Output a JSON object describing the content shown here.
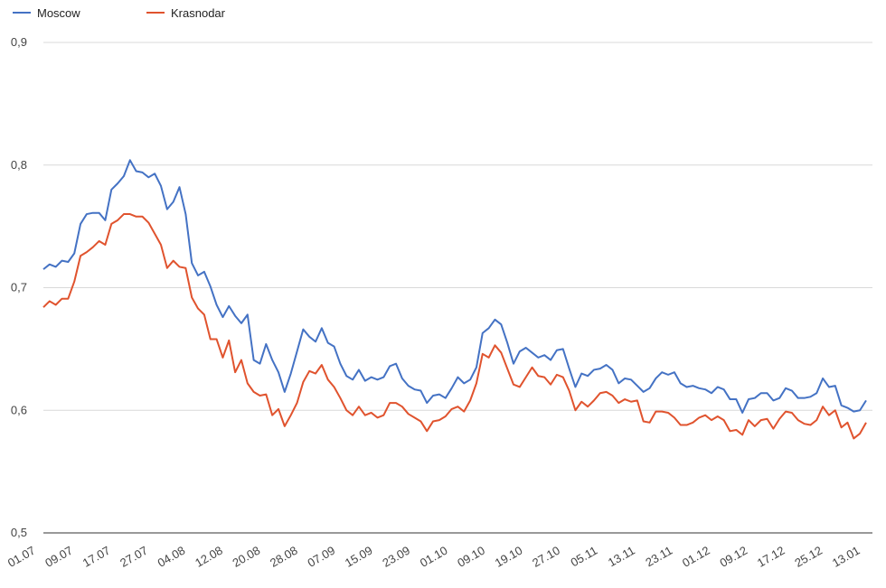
{
  "chart_data": {
    "type": "line",
    "title": "",
    "xlabel": "",
    "ylabel": "",
    "ylim": [
      0.5,
      0.9
    ],
    "y_ticks": [
      "0,5",
      "0,6",
      "0,7",
      "0,8",
      "0,9"
    ],
    "y_tick_values": [
      0.5,
      0.6,
      0.7,
      0.8,
      0.9
    ],
    "x_ticks": [
      "01.07",
      "09.07",
      "17.07",
      "27.07",
      "04.08",
      "12.08",
      "20.08",
      "28.08",
      "07.09",
      "15.09",
      "23.09",
      "01.10",
      "09.10",
      "19.10",
      "27.10",
      "05.11",
      "13.11",
      "23.11",
      "01.12",
      "09.12",
      "17.12",
      "25.12",
      "13.01"
    ],
    "grid": true,
    "legend_position": "top-left",
    "series": [
      {
        "name": "Moscow",
        "color": "#4472c4",
        "values": [
          0.715,
          0.719,
          0.717,
          0.722,
          0.721,
          0.728,
          0.752,
          0.76,
          0.761,
          0.761,
          0.755,
          0.78,
          0.785,
          0.791,
          0.804,
          0.795,
          0.794,
          0.79,
          0.793,
          0.783,
          0.764,
          0.77,
          0.782,
          0.76,
          0.72,
          0.71,
          0.713,
          0.701,
          0.686,
          0.676,
          0.685,
          0.677,
          0.671,
          0.678,
          0.641,
          0.638,
          0.654,
          0.641,
          0.631,
          0.615,
          0.63,
          0.648,
          0.666,
          0.66,
          0.656,
          0.667,
          0.655,
          0.652,
          0.638,
          0.628,
          0.625,
          0.633,
          0.624,
          0.627,
          0.625,
          0.627,
          0.636,
          0.638,
          0.626,
          0.62,
          0.617,
          0.616,
          0.606,
          0.612,
          0.613,
          0.61,
          0.618,
          0.627,
          0.622,
          0.625,
          0.635,
          0.663,
          0.667,
          0.674,
          0.67,
          0.655,
          0.638,
          0.648,
          0.651,
          0.647,
          0.643,
          0.645,
          0.641,
          0.649,
          0.65,
          0.634,
          0.619,
          0.63,
          0.628,
          0.633,
          0.634,
          0.637,
          0.633,
          0.622,
          0.626,
          0.625,
          0.62,
          0.615,
          0.618,
          0.626,
          0.631,
          0.629,
          0.631,
          0.622,
          0.619,
          0.62,
          0.618,
          0.617,
          0.614,
          0.619,
          0.617,
          0.609,
          0.609,
          0.598,
          0.609,
          0.61,
          0.614,
          0.614,
          0.608,
          0.61,
          0.618,
          0.616,
          0.61,
          0.61,
          0.611,
          0.614,
          0.626,
          0.619,
          0.62,
          0.604,
          0.602,
          0.599,
          0.6,
          0.608
        ]
      },
      {
        "name": "Krasnodar",
        "color": "#e0532e",
        "values": [
          0.684,
          0.689,
          0.686,
          0.691,
          0.691,
          0.705,
          0.726,
          0.729,
          0.733,
          0.738,
          0.735,
          0.752,
          0.755,
          0.76,
          0.76,
          0.758,
          0.758,
          0.753,
          0.744,
          0.735,
          0.716,
          0.722,
          0.717,
          0.716,
          0.692,
          0.683,
          0.678,
          0.658,
          0.658,
          0.643,
          0.657,
          0.631,
          0.641,
          0.622,
          0.615,
          0.612,
          0.613,
          0.596,
          0.601,
          0.587,
          0.596,
          0.606,
          0.623,
          0.632,
          0.63,
          0.637,
          0.625,
          0.619,
          0.61,
          0.6,
          0.596,
          0.603,
          0.596,
          0.598,
          0.594,
          0.596,
          0.606,
          0.606,
          0.603,
          0.597,
          0.594,
          0.591,
          0.583,
          0.591,
          0.592,
          0.595,
          0.601,
          0.603,
          0.599,
          0.608,
          0.622,
          0.646,
          0.643,
          0.653,
          0.647,
          0.634,
          0.621,
          0.619,
          0.627,
          0.635,
          0.628,
          0.627,
          0.621,
          0.629,
          0.627,
          0.616,
          0.6,
          0.607,
          0.603,
          0.608,
          0.614,
          0.615,
          0.612,
          0.606,
          0.609,
          0.607,
          0.608,
          0.591,
          0.59,
          0.599,
          0.599,
          0.598,
          0.594,
          0.588,
          0.588,
          0.59,
          0.594,
          0.596,
          0.592,
          0.595,
          0.592,
          0.583,
          0.584,
          0.58,
          0.592,
          0.587,
          0.592,
          0.593,
          0.585,
          0.593,
          0.599,
          0.598,
          0.592,
          0.589,
          0.588,
          0.592,
          0.603,
          0.596,
          0.6,
          0.586,
          0.59,
          0.577,
          0.581,
          0.59
        ]
      }
    ]
  }
}
